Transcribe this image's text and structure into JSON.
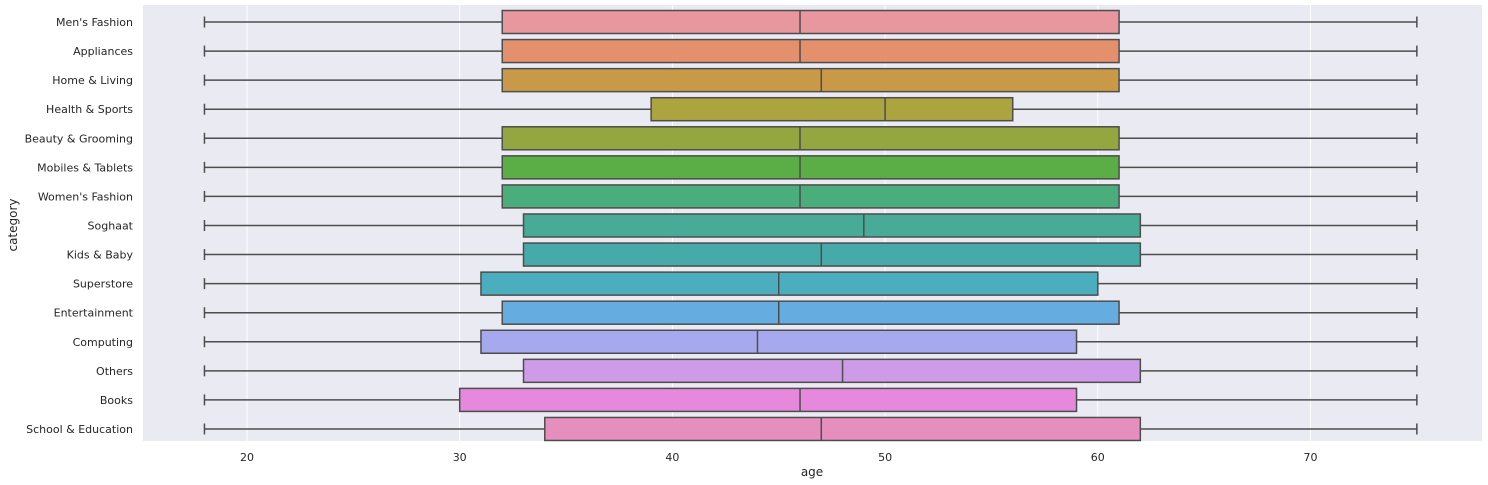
{
  "chart_data": {
    "type": "boxplot",
    "orientation": "horizontal",
    "xlabel": "age",
    "ylabel": "category",
    "xlim": [
      15,
      78
    ],
    "xticks": [
      20,
      30,
      40,
      50,
      60,
      70
    ],
    "grid": true,
    "background": "#eaeaf2",
    "edge_color": "#4d4d4d",
    "categories": [
      {
        "name": "Men's Fashion",
        "min": 18,
        "q1": 32,
        "median": 46,
        "q3": 61,
        "max": 75,
        "color": "#e9979f"
      },
      {
        "name": "Appliances",
        "min": 18,
        "q1": 32,
        "median": 46,
        "q3": 61,
        "max": 75,
        "color": "#e4906c"
      },
      {
        "name": "Home & Living",
        "min": 18,
        "q1": 32,
        "median": 47,
        "q3": 61,
        "max": 75,
        "color": "#c89a47"
      },
      {
        "name": "Health & Sports",
        "min": 18,
        "q1": 39,
        "median": 50,
        "q3": 56,
        "max": 75,
        "color": "#aba43f"
      },
      {
        "name": "Beauty & Grooming",
        "min": 18,
        "q1": 32,
        "median": 46,
        "q3": 61,
        "max": 75,
        "color": "#93a640"
      },
      {
        "name": "Mobiles & Tablets",
        "min": 18,
        "q1": 32,
        "median": 46,
        "q3": 61,
        "max": 75,
        "color": "#5aae45"
      },
      {
        "name": "Women's Fashion",
        "min": 18,
        "q1": 32,
        "median": 46,
        "q3": 61,
        "max": 75,
        "color": "#49ad7c"
      },
      {
        "name": "Soghaat",
        "min": 18,
        "q1": 33,
        "median": 49,
        "q3": 62,
        "max": 75,
        "color": "#47ab98"
      },
      {
        "name": "Kids & Baby",
        "min": 18,
        "q1": 33,
        "median": 47,
        "q3": 62,
        "max": 75,
        "color": "#46aaa8"
      },
      {
        "name": "Superstore",
        "min": 18,
        "q1": 31,
        "median": 45,
        "q3": 60,
        "max": 75,
        "color": "#4aaebf"
      },
      {
        "name": "Entertainment",
        "min": 18,
        "q1": 32,
        "median": 45,
        "q3": 61,
        "max": 75,
        "color": "#65ace0"
      },
      {
        "name": "Computing",
        "min": 18,
        "q1": 31,
        "median": 44,
        "q3": 59,
        "max": 75,
        "color": "#a6a9ee"
      },
      {
        "name": "Others",
        "min": 18,
        "q1": 33,
        "median": 48,
        "q3": 62,
        "max": 75,
        "color": "#cd9be8"
      },
      {
        "name": "Books",
        "min": 18,
        "q1": 30,
        "median": 46,
        "q3": 59,
        "max": 75,
        "color": "#e689dc"
      },
      {
        "name": "School & Education",
        "min": 18,
        "q1": 34,
        "median": 47,
        "q3": 62,
        "max": 75,
        "color": "#e68fbf"
      }
    ]
  }
}
